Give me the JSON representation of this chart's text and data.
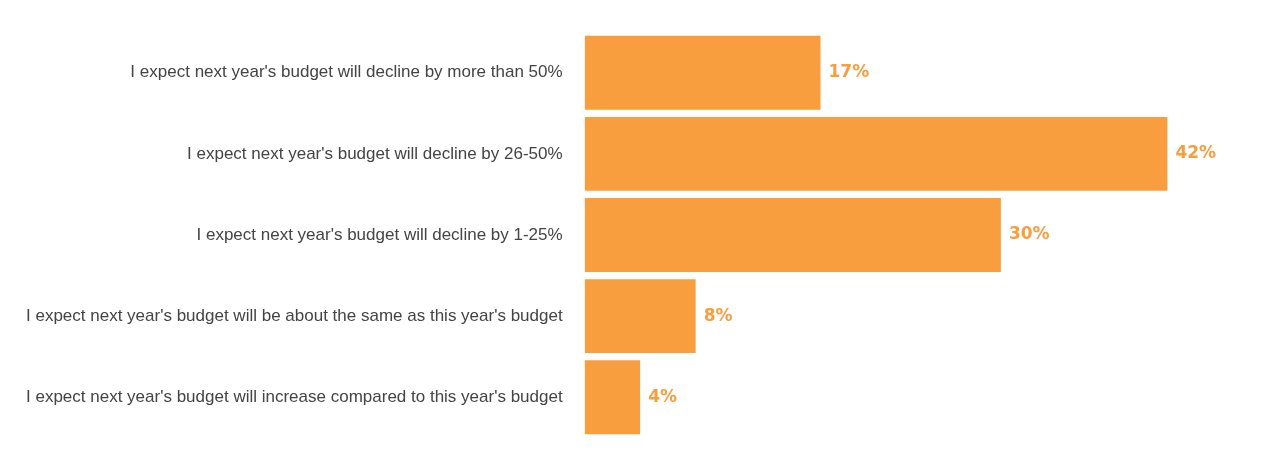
{
  "chart_data": {
    "type": "bar",
    "orientation": "horizontal",
    "categories": [
      "I expect next year's budget will decline by more than 50%",
      "I expect next year's budget will decline by 26-50%",
      "I expect next year's budget will decline by 1-25%",
      "I expect next year's budget will be about the same as this year's budget",
      "I expect next year's budget will increase compared to this year's budget"
    ],
    "values": [
      17,
      42,
      30,
      8,
      4
    ],
    "value_labels": [
      "17%",
      "42%",
      "30%",
      "8%",
      "4%"
    ],
    "color": "#f99e3e",
    "grid": false,
    "legend": false,
    "tick_labels": "y"
  }
}
